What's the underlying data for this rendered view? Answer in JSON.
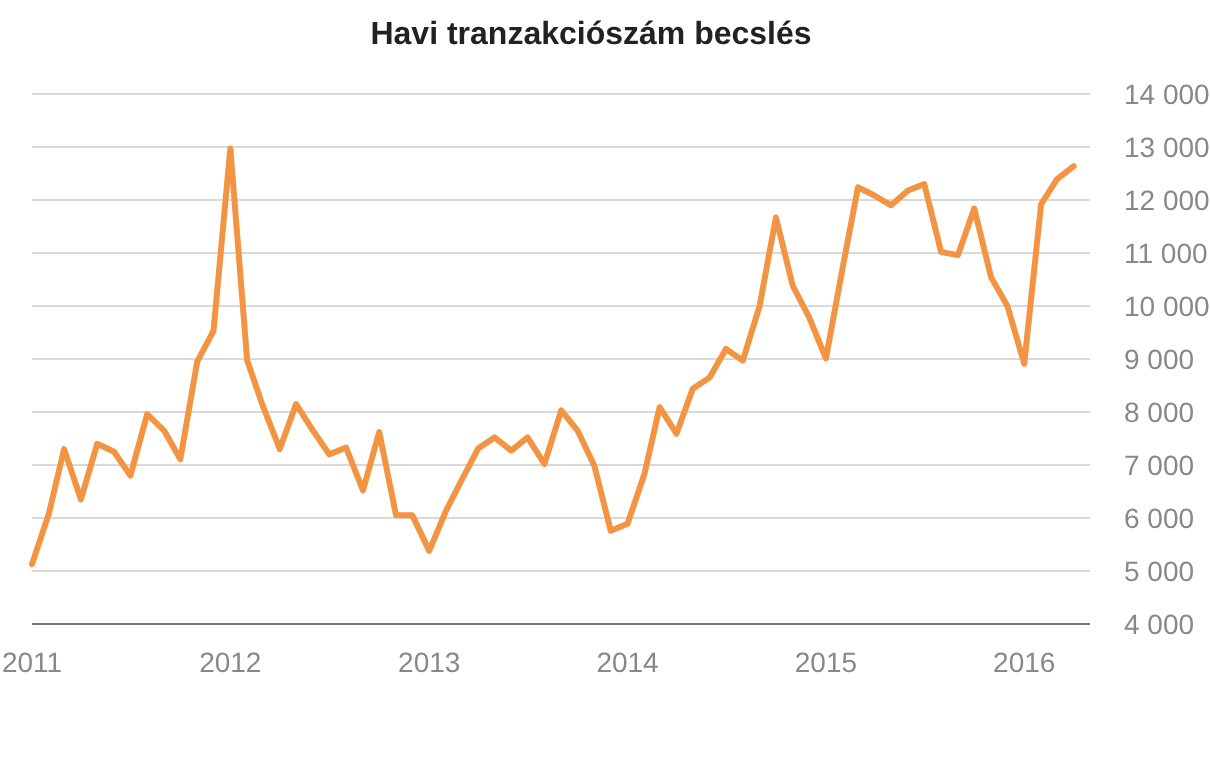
{
  "chart_data": {
    "type": "line",
    "title": "Havi tranzakciószám becslés",
    "x": [
      "2011-01",
      "2011-02",
      "2011-03",
      "2011-04",
      "2011-05",
      "2011-06",
      "2011-07",
      "2011-08",
      "2011-09",
      "2011-10",
      "2011-11",
      "2011-12",
      "2012-01",
      "2012-02",
      "2012-03",
      "2012-04",
      "2012-05",
      "2012-06",
      "2012-07",
      "2012-08",
      "2012-09",
      "2012-10",
      "2012-11",
      "2012-12",
      "2013-01",
      "2013-02",
      "2013-03",
      "2013-04",
      "2013-05",
      "2013-06",
      "2013-07",
      "2013-08",
      "2013-09",
      "2013-10",
      "2013-11",
      "2013-12",
      "2014-01",
      "2014-02",
      "2014-03",
      "2014-04",
      "2014-05",
      "2014-06",
      "2014-07",
      "2014-08",
      "2014-09",
      "2014-10",
      "2014-11",
      "2014-12",
      "2015-01",
      "2015-02",
      "2015-03",
      "2015-04",
      "2015-05",
      "2015-06",
      "2015-07",
      "2015-08",
      "2015-09",
      "2015-10",
      "2015-11",
      "2015-12",
      "2016-01",
      "2016-02",
      "2016-03",
      "2016-04"
    ],
    "series": [
      {
        "color": "#f39443",
        "values": [
          5130,
          6080,
          7300,
          6350,
          7400,
          7250,
          6800,
          7960,
          7650,
          7110,
          8950,
          9530,
          12970,
          8970,
          8110,
          7300,
          8150,
          7650,
          7200,
          7330,
          6520,
          7620,
          6050,
          6050,
          5380,
          6140,
          6700,
          7310,
          7520,
          7270,
          7520,
          7020,
          8030,
          7650,
          6980,
          5760,
          5890,
          6830,
          8090,
          7590,
          8440,
          8650,
          9190,
          8970,
          10000,
          11670,
          10380,
          9790,
          9010,
          10730,
          12240,
          12080,
          11900,
          12180,
          12300,
          11020,
          10960,
          11840,
          10540,
          10000,
          8910,
          11920,
          12390,
          12640
        ]
      }
    ],
    "xlim": [
      "2011-01",
      "2016-05"
    ],
    "xticks": [
      {
        "value": "2011-01",
        "label": "2011"
      },
      {
        "value": "2012-01",
        "label": "2012"
      },
      {
        "value": "2013-01",
        "label": "2013"
      },
      {
        "value": "2014-01",
        "label": "2014"
      },
      {
        "value": "2015-01",
        "label": "2015"
      },
      {
        "value": "2016-01",
        "label": "2016"
      }
    ],
    "ylim": [
      4000,
      14000
    ],
    "yticks": [
      {
        "value": 4000,
        "label": "4 000"
      },
      {
        "value": 5000,
        "label": "5 000"
      },
      {
        "value": 6000,
        "label": "6 000"
      },
      {
        "value": 7000,
        "label": "7 000"
      },
      {
        "value": 8000,
        "label": "8 000"
      },
      {
        "value": 9000,
        "label": "9 000"
      },
      {
        "value": 10000,
        "label": "10 000"
      },
      {
        "value": 11000,
        "label": "11 000"
      },
      {
        "value": 12000,
        "label": "12 000"
      },
      {
        "value": 13000,
        "label": "13 000"
      },
      {
        "value": 14000,
        "label": "14 000"
      }
    ],
    "grid": "y",
    "marker": "none",
    "line_style": "solid"
  }
}
